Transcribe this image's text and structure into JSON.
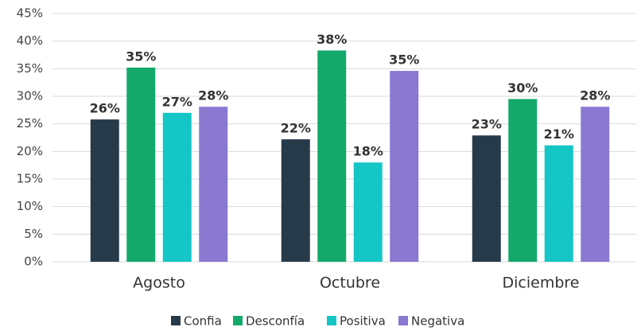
{
  "chart_data": {
    "type": "bar",
    "categories": [
      "Agosto",
      "Octubre",
      "Diciembre"
    ],
    "series": [
      {
        "name": "Confia",
        "color": "#263a4a",
        "values": [
          25.8,
          22.2,
          22.9
        ],
        "value_labels": [
          "26%",
          "22%",
          "23%"
        ]
      },
      {
        "name": "Desconfía",
        "color": "#12a96a",
        "values": [
          35.2,
          38.3,
          29.5
        ],
        "value_labels": [
          "35%",
          "38%",
          "30%"
        ]
      },
      {
        "name": "Positiva",
        "color": "#14c6c6",
        "values": [
          27.0,
          18.0,
          21.1
        ],
        "value_labels": [
          "27%",
          "18%",
          "21%"
        ]
      },
      {
        "name": "Negativa",
        "color": "#8a78d1",
        "values": [
          28.1,
          34.6,
          28.1
        ],
        "value_labels": [
          "28%",
          "35%",
          "28%"
        ]
      }
    ],
    "ylim": [
      0,
      45
    ],
    "yticks": [
      {
        "value": 0,
        "label": "0%"
      },
      {
        "value": 5,
        "label": "5%"
      },
      {
        "value": 10,
        "label": "10%"
      },
      {
        "value": 15,
        "label": "15%"
      },
      {
        "value": 20,
        "label": "20%"
      },
      {
        "value": 25,
        "label": "25%"
      },
      {
        "value": 30,
        "label": "30%"
      },
      {
        "value": 35,
        "label": "35%"
      },
      {
        "value": 40,
        "label": "40%"
      },
      {
        "value": 45,
        "label": "45%"
      }
    ],
    "grid": true,
    "legend": "bottom"
  }
}
